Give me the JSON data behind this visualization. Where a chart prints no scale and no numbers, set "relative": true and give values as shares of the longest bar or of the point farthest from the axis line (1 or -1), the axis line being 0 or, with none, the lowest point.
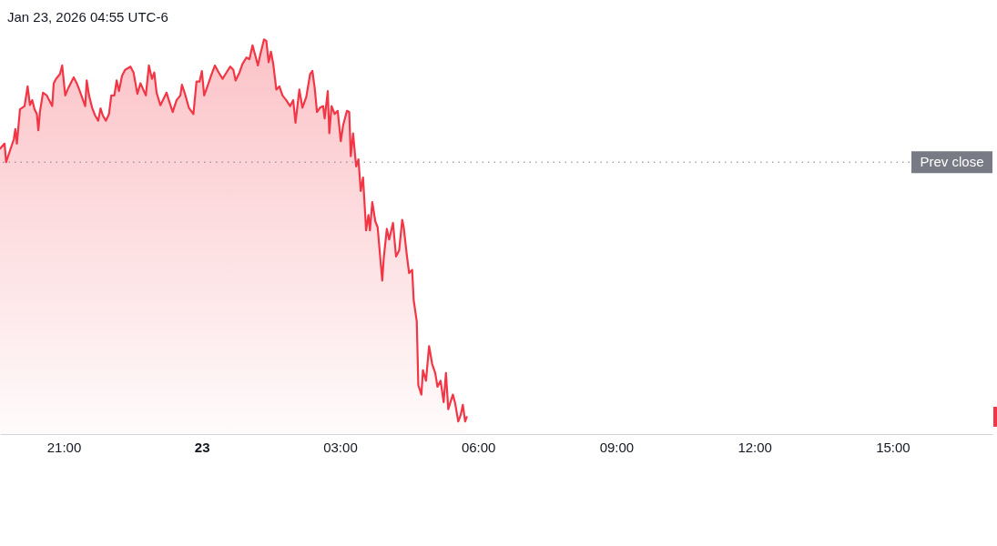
{
  "chart_data": {
    "type": "area",
    "title": "Jan 23, 2026 04:55 UTC-6",
    "relative": true,
    "x": [
      "2026-01-22T19:37",
      "2026-01-22T19:43",
      "2026-01-22T19:45",
      "2026-01-22T19:55",
      "2026-01-22T19:57",
      "2026-01-22T19:59",
      "2026-01-22T20:02",
      "2026-01-22T20:03",
      "2026-01-22T20:09",
      "2026-01-22T20:13",
      "2026-01-22T20:16",
      "2026-01-22T20:19",
      "2026-01-22T20:22",
      "2026-01-22T20:25",
      "2026-01-22T20:27",
      "2026-01-22T20:29",
      "2026-01-22T20:33",
      "2026-01-22T20:38",
      "2026-01-22T20:45",
      "2026-01-22T20:47",
      "2026-01-22T20:50",
      "2026-01-22T20:55",
      "2026-01-22T20:58",
      "2026-01-22T21:02",
      "2026-01-22T21:06",
      "2026-01-22T21:13",
      "2026-01-22T21:17",
      "2026-01-22T21:21",
      "2026-01-22T21:28",
      "2026-01-22T21:30",
      "2026-01-22T21:33",
      "2026-01-22T21:37",
      "2026-01-22T21:41",
      "2026-01-22T21:45",
      "2026-01-22T21:48",
      "2026-01-22T21:51",
      "2026-01-22T21:55",
      "2026-01-22T21:59",
      "2026-01-22T22:02",
      "2026-01-22T22:06",
      "2026-01-22T22:09",
      "2026-01-22T22:12",
      "2026-01-22T22:16",
      "2026-01-22T22:20",
      "2026-01-22T22:27",
      "2026-01-22T22:31",
      "2026-01-22T22:36",
      "2026-01-22T22:40",
      "2026-01-22T22:47",
      "2026-01-22T22:51",
      "2026-01-22T22:55",
      "2026-01-22T22:58",
      "2026-01-22T23:01",
      "2026-01-22T23:06",
      "2026-01-22T23:14",
      "2026-01-22T23:17",
      "2026-01-22T23:22",
      "2026-01-22T23:27",
      "2026-01-22T23:32",
      "2026-01-22T23:34",
      "2026-01-22T23:38",
      "2026-01-22T23:43",
      "2026-01-22T23:49",
      "2026-01-22T23:53",
      "2026-01-22T23:57",
      "2026-01-23T00:00",
      "2026-01-23T00:03",
      "2026-01-23T00:08",
      "2026-01-23T00:12",
      "2026-01-23T00:17",
      "2026-01-23T00:22",
      "2026-01-23T00:27",
      "2026-01-23T00:32",
      "2026-01-23T00:37",
      "2026-01-23T00:41",
      "2026-01-23T00:44",
      "2026-01-23T00:49",
      "2026-01-23T00:53",
      "2026-01-23T00:58",
      "2026-01-23T01:02",
      "2026-01-23T01:06",
      "2026-01-23T01:10",
      "2026-01-23T01:13",
      "2026-01-23T01:16",
      "2026-01-23T01:21",
      "2026-01-23T01:24",
      "2026-01-23T01:27",
      "2026-01-23T01:30",
      "2026-01-23T01:33",
      "2026-01-23T01:37",
      "2026-01-23T01:41",
      "2026-01-23T01:45",
      "2026-01-23T01:50",
      "2026-01-23T01:55",
      "2026-01-23T01:59",
      "2026-01-23T02:02",
      "2026-01-23T02:07",
      "2026-01-23T02:11",
      "2026-01-23T02:16",
      "2026-01-23T02:21",
      "2026-01-23T02:24",
      "2026-01-23T02:27",
      "2026-01-23T02:30",
      "2026-01-23T02:34",
      "2026-01-23T02:38",
      "2026-01-23T02:40",
      "2026-01-23T02:44",
      "2026-01-23T02:46",
      "2026-01-23T02:49",
      "2026-01-23T02:53",
      "2026-01-23T02:57",
      "2026-01-23T03:01",
      "2026-01-23T03:04",
      "2026-01-23T03:09",
      "2026-01-23T03:12",
      "2026-01-23T03:14",
      "2026-01-23T03:17",
      "2026-01-23T03:21",
      "2026-01-23T03:24",
      "2026-01-23T03:27",
      "2026-01-23T03:30",
      "2026-01-23T03:34",
      "2026-01-23T03:37",
      "2026-01-23T03:39",
      "2026-01-23T03:42",
      "2026-01-23T03:46",
      "2026-01-23T03:49",
      "2026-01-23T03:55",
      "2026-01-23T03:57",
      "2026-01-23T04:01",
      "2026-01-23T04:04",
      "2026-01-23T04:09",
      "2026-01-23T04:13",
      "2026-01-23T04:17",
      "2026-01-23T04:21",
      "2026-01-23T04:23",
      "2026-01-23T04:27",
      "2026-01-23T04:30",
      "2026-01-23T04:34",
      "2026-01-23T04:36",
      "2026-01-23T04:40",
      "2026-01-23T04:42",
      "2026-01-23T04:46",
      "2026-01-23T04:48",
      "2026-01-23T04:52",
      "2026-01-23T04:56",
      "2026-01-23T05:00",
      "2026-01-23T05:04",
      "2026-01-23T05:07",
      "2026-01-23T05:11",
      "2026-01-23T05:15",
      "2026-01-23T05:18",
      "2026-01-23T05:21",
      "2026-01-23T05:27",
      "2026-01-23T05:30",
      "2026-01-23T05:34",
      "2026-01-23T05:37",
      "2026-01-23T05:40",
      "2026-01-23T05:43",
      "2026-01-23T05:45"
    ],
    "series": [
      {
        "color": "#f23645",
        "values": [
          0.723,
          0.736,
          0.689,
          0.747,
          0.773,
          0.736,
          0.8,
          0.823,
          0.831,
          0.881,
          0.834,
          0.846,
          0.823,
          0.811,
          0.77,
          0.816,
          0.865,
          0.858,
          0.831,
          0.889,
          0.9,
          0.912,
          0.934,
          0.858,
          0.877,
          0.904,
          0.889,
          0.869,
          0.831,
          0.896,
          0.858,
          0.827,
          0.807,
          0.794,
          0.825,
          0.807,
          0.794,
          0.811,
          0.858,
          0.858,
          0.896,
          0.869,
          0.908,
          0.923,
          0.931,
          0.916,
          0.862,
          0.889,
          0.858,
          0.934,
          0.9,
          0.916,
          0.865,
          0.833,
          0.865,
          0.846,
          0.816,
          0.846,
          0.858,
          0.885,
          0.862,
          0.827,
          0.811,
          0.893,
          0.893,
          0.92,
          0.858,
          0.885,
          0.908,
          0.934,
          0.916,
          0.9,
          0.916,
          0.931,
          0.923,
          0.896,
          0.916,
          0.938,
          0.954,
          0.95,
          0.985,
          0.957,
          0.934,
          0.961,
          1,
          0.996,
          0.942,
          0.969,
          0.938,
          0.873,
          0.881,
          0.858,
          0.846,
          0.831,
          0.846,
          0.789,
          0.873,
          0.827,
          0.854,
          0.912,
          0.92,
          0.877,
          0.816,
          0.827,
          0.831,
          0.8,
          0.869,
          0.762,
          0.831,
          0.811,
          0.819,
          0.742,
          0.782,
          0.819,
          0.816,
          0.704,
          0.762,
          0.678,
          0.696,
          0.616,
          0.65,
          0.516,
          0.555,
          0.516,
          0.588,
          0.539,
          0.524,
          0.389,
          0.447,
          0.52,
          0.493,
          0.535,
          0.45,
          0.465,
          0.543,
          0.524,
          0.454,
          0.408,
          0.416,
          0.339,
          0.285,
          0.124,
          0.1,
          0.162,
          0.135,
          0.223,
          0.178,
          0.155,
          0.12,
          0.135,
          0.081,
          0.155,
          0.063,
          0.1,
          0.078,
          0.032,
          0.047,
          0.074,
          0.032,
          0.043
        ]
      }
    ],
    "xlim": [
      "2026-01-22T19:37",
      "2026-01-23T17:10"
    ],
    "xticks": [
      {
        "value": "2026-01-22T21:00",
        "label": "21:00"
      },
      {
        "value": "2026-01-23T00:00",
        "label": "23"
      },
      {
        "value": "2026-01-23T03:00",
        "label": "03:00"
      },
      {
        "value": "2026-01-23T06:00",
        "label": "06:00"
      },
      {
        "value": "2026-01-23T09:00",
        "label": "09:00"
      },
      {
        "value": "2026-01-23T12:00",
        "label": "12:00"
      },
      {
        "value": "2026-01-23T15:00",
        "label": "15:00"
      }
    ],
    "ref_lines": [
      {
        "axis": "y",
        "value": 0.689,
        "label": "Prev close",
        "color": "#787b86",
        "line_style": "dotted"
      }
    ]
  }
}
